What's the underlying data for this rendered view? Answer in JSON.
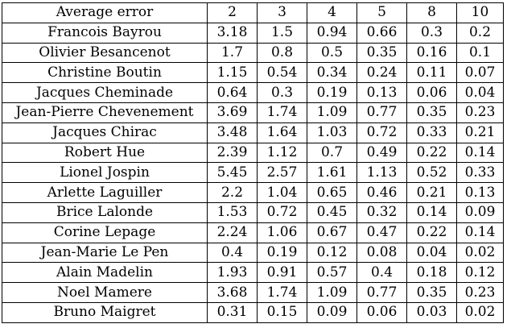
{
  "table": {
    "header": [
      "Average error",
      "2",
      "3",
      "4",
      "5",
      "8",
      "10"
    ],
    "rows": [
      [
        "Francois Bayrou",
        "3.18",
        "1.5",
        "0.94",
        "0.66",
        "0.3",
        "0.2"
      ],
      [
        "Olivier Besancenot",
        "1.7",
        "0.8",
        "0.5",
        "0.35",
        "0.16",
        "0.1"
      ],
      [
        "Christine Boutin",
        "1.15",
        "0.54",
        "0.34",
        "0.24",
        "0.11",
        "0.07"
      ],
      [
        "Jacques Cheminade",
        "0.64",
        "0.3",
        "0.19",
        "0.13",
        "0.06",
        "0.04"
      ],
      [
        "Jean-Pierre Chevenement",
        "3.69",
        "1.74",
        "1.09",
        "0.77",
        "0.35",
        "0.23"
      ],
      [
        "Jacques Chirac",
        "3.48",
        "1.64",
        "1.03",
        "0.72",
        "0.33",
        "0.21"
      ],
      [
        "Robert Hue",
        "2.39",
        "1.12",
        "0.7",
        "0.49",
        "0.22",
        "0.14"
      ],
      [
        "Lionel Jospin",
        "5.45",
        "2.57",
        "1.61",
        "1.13",
        "0.52",
        "0.33"
      ],
      [
        "Arlette Laguiller",
        "2.2",
        "1.04",
        "0.65",
        "0.46",
        "0.21",
        "0.13"
      ],
      [
        "Brice Lalonde",
        "1.53",
        "0.72",
        "0.45",
        "0.32",
        "0.14",
        "0.09"
      ],
      [
        "Corine Lepage",
        "2.24",
        "1.06",
        "0.67",
        "0.47",
        "0.22",
        "0.14"
      ],
      [
        "Jean-Marie Le Pen",
        "0.4",
        "0.19",
        "0.12",
        "0.08",
        "0.04",
        "0.02"
      ],
      [
        "Alain Madelin",
        "1.93",
        "0.91",
        "0.57",
        "0.4",
        "0.18",
        "0.12"
      ],
      [
        "Noel Mamere",
        "3.68",
        "1.74",
        "1.09",
        "0.77",
        "0.35",
        "0.23"
      ],
      [
        "Bruno Maigret",
        "0.31",
        "0.15",
        "0.09",
        "0.06",
        "0.03",
        "0.02"
      ]
    ]
  }
}
